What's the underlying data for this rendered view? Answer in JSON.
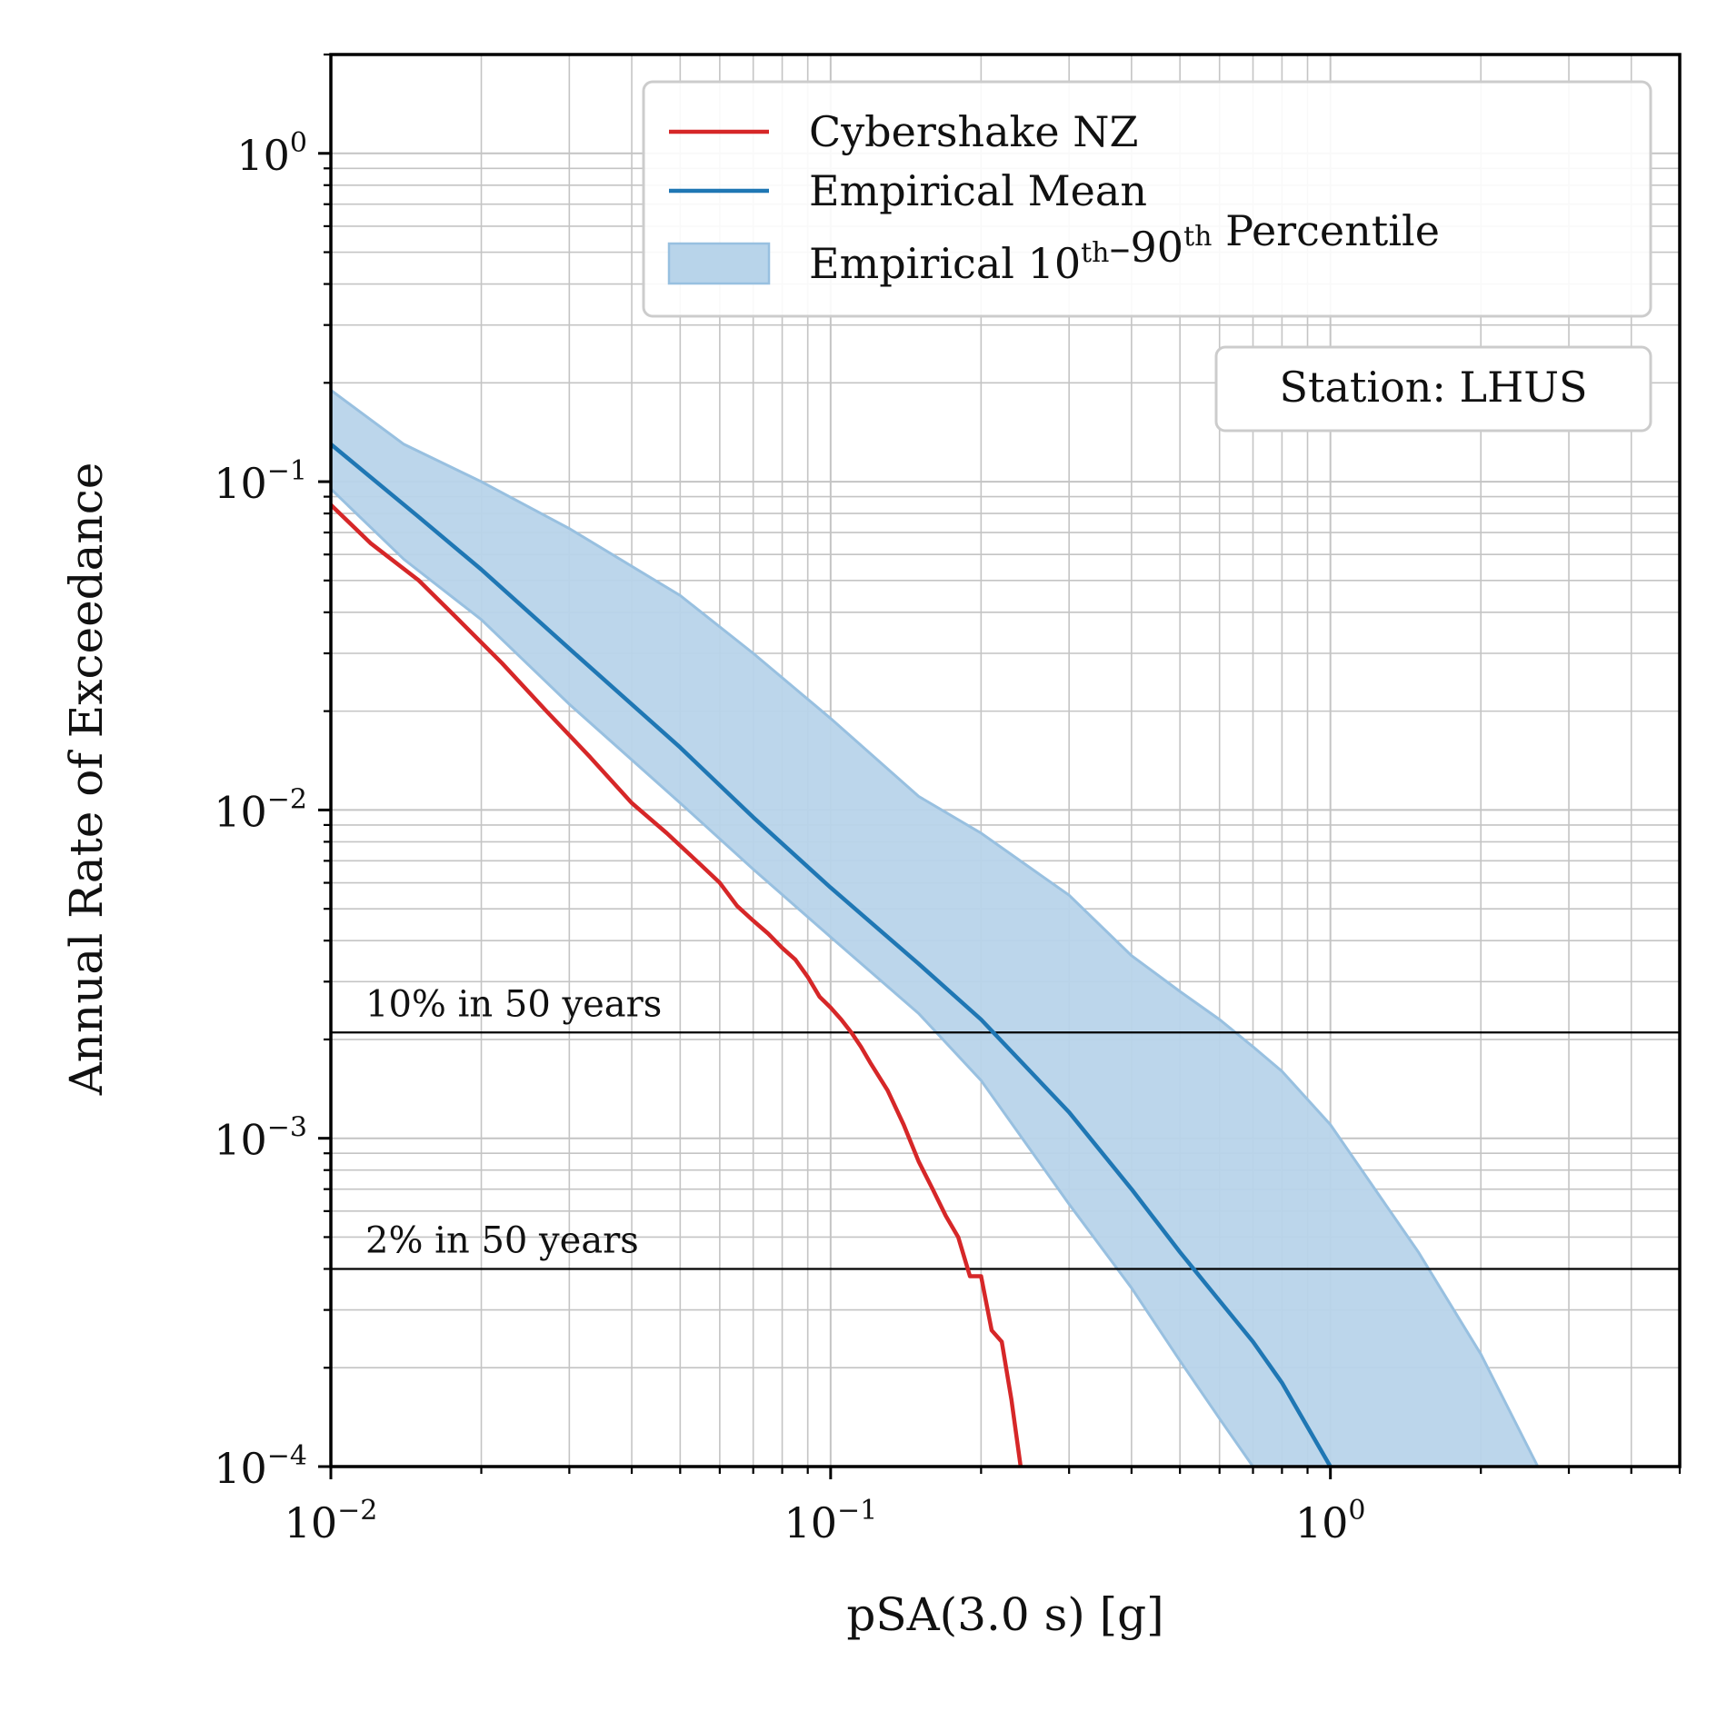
{
  "chart_data": {
    "type": "line",
    "xlabel": "pSA(3.0 s) [g]",
    "ylabel": "Annual Rate of Exceedance",
    "xscale": "log",
    "yscale": "log",
    "xlim": [
      0.01,
      5.0
    ],
    "ylim": [
      0.0001,
      2.0
    ],
    "grid": "on (major and minor)",
    "legend_placement": "top-right",
    "x_ticks": [
      {
        "value": 0.01,
        "base": "10",
        "exp": "−2"
      },
      {
        "value": 0.1,
        "base": "10",
        "exp": "−1"
      },
      {
        "value": 1.0,
        "base": "10",
        "exp": "0"
      }
    ],
    "y_ticks": [
      {
        "value": 0.0001,
        "base": "10",
        "exp": "−4"
      },
      {
        "value": 0.001,
        "base": "10",
        "exp": "−3"
      },
      {
        "value": 0.01,
        "base": "10",
        "exp": "−2"
      },
      {
        "value": 0.1,
        "base": "10",
        "exp": "−1"
      },
      {
        "value": 1.0,
        "base": "10",
        "exp": "0"
      }
    ],
    "series": [
      {
        "name": "Cybershake NZ",
        "color": "#d62728",
        "x": [
          0.01,
          0.012,
          0.015,
          0.018,
          0.022,
          0.027,
          0.033,
          0.04,
          0.047,
          0.055,
          0.06,
          0.065,
          0.07,
          0.075,
          0.08,
          0.085,
          0.09,
          0.095,
          0.1,
          0.105,
          0.11,
          0.115,
          0.12,
          0.13,
          0.14,
          0.15,
          0.16,
          0.17,
          0.18,
          0.19,
          0.2,
          0.21,
          0.22,
          0.23,
          0.24
        ],
        "y": [
          0.085,
          0.065,
          0.05,
          0.038,
          0.028,
          0.02,
          0.0145,
          0.0105,
          0.0085,
          0.0068,
          0.006,
          0.0051,
          0.0046,
          0.0042,
          0.0038,
          0.0035,
          0.0031,
          0.0027,
          0.0025,
          0.0023,
          0.0021,
          0.0019,
          0.0017,
          0.0014,
          0.0011,
          0.00085,
          0.0007,
          0.00058,
          0.0005,
          0.00038,
          0.00038,
          0.00026,
          0.00024,
          0.00016,
          0.0001
        ]
      },
      {
        "name": "Empirical Mean",
        "color": "#1f77b4",
        "x": [
          0.01,
          0.015,
          0.02,
          0.03,
          0.05,
          0.07,
          0.1,
          0.15,
          0.2,
          0.3,
          0.4,
          0.5,
          0.6,
          0.7,
          0.8,
          1.0
        ],
        "y": [
          0.13,
          0.078,
          0.054,
          0.031,
          0.0155,
          0.0095,
          0.0058,
          0.0034,
          0.0023,
          0.0012,
          0.0007,
          0.00045,
          0.00032,
          0.00024,
          0.00018,
          0.0001
        ]
      }
    ],
    "band": {
      "name": "Empirical 10th–90th Percentile",
      "color": "#b8d4ea",
      "edge_color": "#98c0e0",
      "x": [
        0.01,
        0.014,
        0.02,
        0.03,
        0.05,
        0.07,
        0.1,
        0.15,
        0.2,
        0.3,
        0.4,
        0.5,
        0.6,
        0.7,
        0.8,
        1.0,
        1.5,
        2.0,
        2.6
      ],
      "upper": [
        0.19,
        0.13,
        0.1,
        0.072,
        0.045,
        0.03,
        0.019,
        0.011,
        0.0085,
        0.0055,
        0.0036,
        0.0028,
        0.0023,
        0.0019,
        0.0016,
        0.0011,
        0.00045,
        0.00022,
        0.0001
      ],
      "lower": [
        0.095,
        0.058,
        0.038,
        0.021,
        0.0105,
        0.0066,
        0.0041,
        0.0024,
        0.0015,
        0.00063,
        0.00035,
        0.00021,
        0.00014,
        0.0001,
        null,
        null,
        null,
        null,
        null
      ]
    },
    "reference_lines": [
      {
        "y": 0.0021,
        "label": "10% in 50 years"
      },
      {
        "y": 0.0004,
        "label": "2% in 50 years"
      }
    ],
    "legend": {
      "items": [
        {
          "label": "Cybershake NZ",
          "kind": "line",
          "color": "#d62728"
        },
        {
          "label": "Empirical Mean",
          "kind": "line",
          "color": "#1f77b4"
        },
        {
          "label_pre": "Empirical 10",
          "sup1": "th",
          "label_mid": "–90",
          "sup2": "th",
          "label_post": " Percentile",
          "kind": "patch",
          "color": "#b8d4ea"
        }
      ]
    },
    "annotation": "Station: LHUS"
  }
}
